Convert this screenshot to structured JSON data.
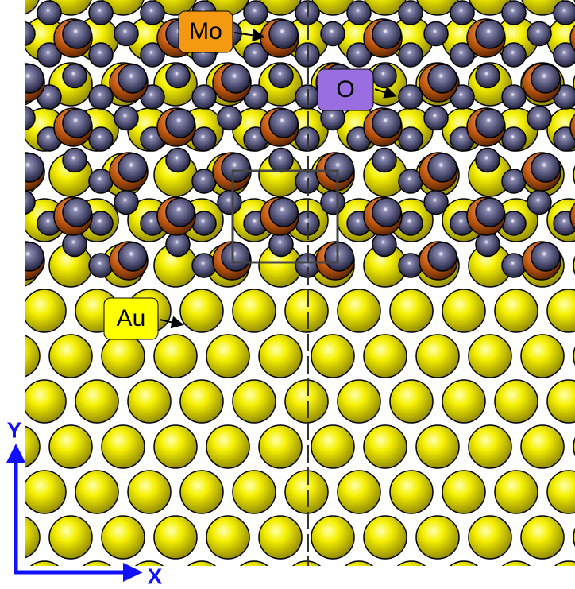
{
  "labels": {
    "mo": "Mo",
    "o": "O",
    "au": "Au"
  },
  "axes": {
    "y": "Y",
    "x": "X"
  }
}
